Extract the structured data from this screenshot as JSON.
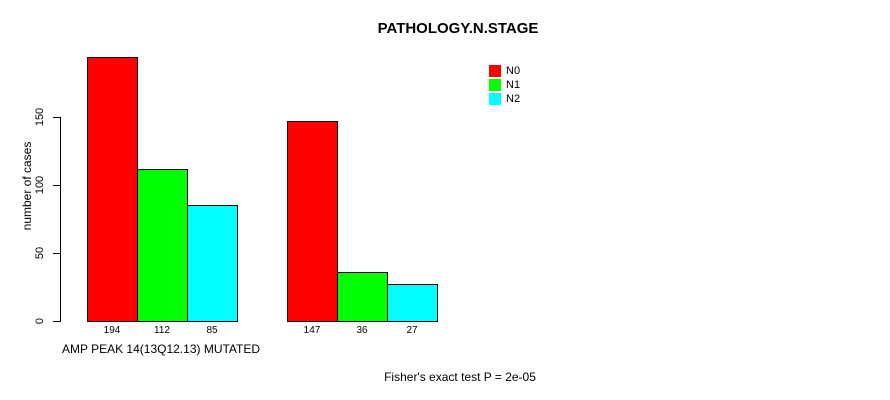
{
  "chart_data": {
    "type": "bar",
    "title": "PATHOLOGY.N.STAGE",
    "ylabel": "number of cases",
    "xlabel": "AMP PEAK 14(13Q12.13) MUTATED",
    "annotation": "Fisher's exact test P = 2e-05",
    "grid": false,
    "ylim": [
      0,
      194
    ],
    "y_ticks": [
      0,
      50,
      100,
      150
    ],
    "legend": {
      "position": "top-right",
      "entries": [
        {
          "label": "N0",
          "color": "#ff0000"
        },
        {
          "label": "N1",
          "color": "#00ff00"
        },
        {
          "label": "N2",
          "color": "#00ffff"
        }
      ]
    },
    "series": [
      {
        "name": "N0",
        "values": [
          194,
          147
        ]
      },
      {
        "name": "N1",
        "values": [
          112,
          36
        ]
      },
      {
        "name": "N2",
        "values": [
          85,
          27
        ]
      }
    ]
  }
}
